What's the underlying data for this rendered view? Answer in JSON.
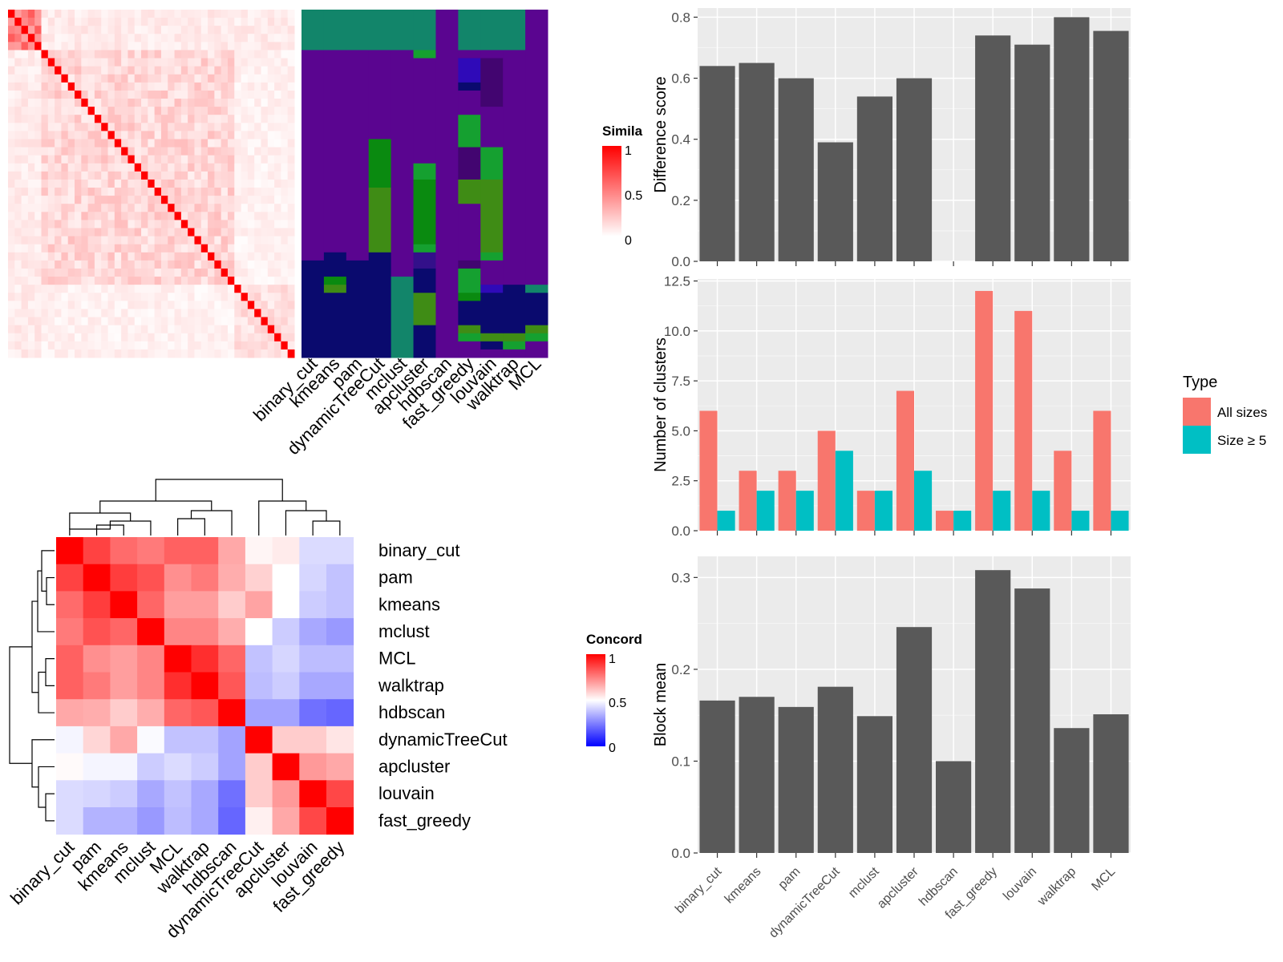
{
  "chart_data": [
    {
      "type": "heatmap",
      "panel": "similarity",
      "legend": {
        "title": "Simila",
        "ticks": [
          "1",
          "0.5",
          "0"
        ],
        "colors": {
          "low": "#ffffff",
          "high": "#ff0000"
        }
      },
      "n_terms": 43,
      "membership": {
        "methods": [
          "binary_cut",
          "kmeans",
          "pam",
          "dynamicTreeCut",
          "mclust",
          "apcluster",
          "hdbscan",
          "fast_greedy",
          "louvain",
          "walktrap",
          "MCL"
        ],
        "colors": {
          "teal": "#12856a",
          "purple": "#5a0590",
          "navy": "#0a0a6e",
          "green": "#0a8a10",
          "olive": "#3f8c15",
          "lightgreen": "#15a030",
          "blue": "#2f0ab8",
          "darkpurple": "#420570",
          "indigo": "#33108a"
        },
        "segments": [
          {
            "method": "binary_cut",
            "blocks": [
              [
                5,
                "teal"
              ],
              [
                26,
                "purple"
              ],
              [
                12,
                "navy"
              ]
            ]
          },
          {
            "method": "kmeans",
            "blocks": [
              [
                5,
                "teal"
              ],
              [
                25,
                "purple"
              ],
              [
                3,
                "navy"
              ],
              [
                1,
                "green"
              ],
              [
                1,
                "olive"
              ],
              [
                8,
                "navy"
              ]
            ]
          },
          {
            "method": "pam",
            "blocks": [
              [
                5,
                "teal"
              ],
              [
                26,
                "purple"
              ],
              [
                12,
                "navy"
              ]
            ]
          },
          {
            "method": "dynamicTreeCut",
            "blocks": [
              [
                5,
                "teal"
              ],
              [
                11,
                "purple"
              ],
              [
                6,
                "green"
              ],
              [
                8,
                "olive"
              ],
              [
                13,
                "navy"
              ]
            ]
          },
          {
            "method": "mclust",
            "blocks": [
              [
                5,
                "teal"
              ],
              [
                28,
                "purple"
              ],
              [
                10,
                "teal"
              ]
            ]
          },
          {
            "method": "apcluster",
            "blocks": [
              [
                5,
                "teal"
              ],
              [
                1,
                "lightgreen"
              ],
              [
                13,
                "purple"
              ],
              [
                2,
                "lightgreen"
              ],
              [
                8,
                "green"
              ],
              [
                1,
                "lightgreen"
              ],
              [
                2,
                "indigo"
              ],
              [
                3,
                "navy"
              ],
              [
                4,
                "olive"
              ],
              [
                4,
                "navy"
              ]
            ]
          },
          {
            "method": "hdbscan",
            "blocks": [
              [
                43,
                "purple"
              ]
            ]
          },
          {
            "method": "fast_greedy",
            "blocks": [
              [
                5,
                "teal"
              ],
              [
                1,
                "purple"
              ],
              [
                3,
                "blue"
              ],
              [
                1,
                "navy"
              ],
              [
                3,
                "purple"
              ],
              [
                4,
                "lightgreen"
              ],
              [
                4,
                "darkpurple"
              ],
              [
                3,
                "olive"
              ],
              [
                7,
                "purple"
              ],
              [
                1,
                "darkpurple"
              ],
              [
                3,
                "lightgreen"
              ],
              [
                1,
                "green"
              ],
              [
                3,
                "navy"
              ],
              [
                1,
                "olive"
              ],
              [
                1,
                "lightgreen"
              ],
              [
                2,
                "purple"
              ]
            ]
          },
          {
            "method": "louvain",
            "blocks": [
              [
                5,
                "teal"
              ],
              [
                1,
                "purple"
              ],
              [
                6,
                "darkpurple"
              ],
              [
                5,
                "purple"
              ],
              [
                4,
                "lightgreen"
              ],
              [
                1,
                "olive"
              ],
              [
                8,
                "olive"
              ],
              [
                1,
                "lightgreen"
              ],
              [
                3,
                "purple"
              ],
              [
                1,
                "blue"
              ],
              [
                5,
                "navy"
              ],
              [
                1,
                "olive"
              ],
              [
                1,
                "navy"
              ],
              [
                1,
                "purple"
              ]
            ]
          },
          {
            "method": "walktrap",
            "blocks": [
              [
                5,
                "teal"
              ],
              [
                29,
                "purple"
              ],
              [
                6,
                "navy"
              ],
              [
                1,
                "olive"
              ],
              [
                1,
                "lightgreen"
              ],
              [
                1,
                "purple"
              ]
            ]
          },
          {
            "method": "MCL",
            "blocks": [
              [
                34,
                "purple"
              ],
              [
                1,
                "teal"
              ],
              [
                4,
                "navy"
              ],
              [
                1,
                "olive"
              ],
              [
                1,
                "lightgreen"
              ],
              [
                2,
                "purple"
              ]
            ]
          }
        ]
      }
    },
    {
      "type": "heatmap",
      "panel": "concordance",
      "legend": {
        "title": "Concord",
        "ticks": [
          "1",
          "0.5",
          "0"
        ],
        "colors": {
          "low": "#0000ff",
          "mid": "#ffffff",
          "high": "#ff0000"
        }
      },
      "columns": [
        "binary_cut",
        "pam",
        "kmeans",
        "mclust",
        "MCL",
        "walktrap",
        "hdbscan",
        "dynamicTreeCut",
        "apcluster",
        "louvain",
        "fast_greedy"
      ],
      "rows": [
        "binary_cut",
        "pam",
        "kmeans",
        "mclust",
        "MCL",
        "walktrap",
        "hdbscan",
        "dynamicTreeCut",
        "apcluster",
        "louvain",
        "fast_greedy"
      ],
      "values": [
        [
          1.0,
          0.87,
          0.79,
          0.76,
          0.81,
          0.81,
          0.67,
          0.52,
          0.54,
          0.43,
          0.43
        ],
        [
          0.87,
          1.0,
          0.88,
          0.84,
          0.72,
          0.76,
          0.66,
          0.59,
          0.5,
          0.42,
          0.38
        ],
        [
          0.79,
          0.88,
          1.0,
          0.8,
          0.69,
          0.69,
          0.6,
          0.68,
          0.5,
          0.4,
          0.38
        ],
        [
          0.76,
          0.84,
          0.8,
          1.0,
          0.74,
          0.74,
          0.66,
          0.5,
          0.4,
          0.33,
          0.3
        ],
        [
          0.81,
          0.72,
          0.69,
          0.74,
          1.0,
          0.91,
          0.8,
          0.38,
          0.42,
          0.37,
          0.37
        ],
        [
          0.81,
          0.76,
          0.69,
          0.74,
          0.91,
          1.0,
          0.83,
          0.37,
          0.4,
          0.33,
          0.33
        ],
        [
          0.67,
          0.66,
          0.6,
          0.66,
          0.8,
          0.83,
          1.0,
          0.32,
          0.32,
          0.22,
          0.2
        ],
        [
          0.48,
          0.58,
          0.67,
          0.49,
          0.38,
          0.38,
          0.32,
          1.0,
          0.6,
          0.6,
          0.55
        ],
        [
          0.51,
          0.48,
          0.48,
          0.4,
          0.43,
          0.4,
          0.32,
          0.6,
          1.0,
          0.7,
          0.67
        ],
        [
          0.43,
          0.42,
          0.4,
          0.33,
          0.38,
          0.33,
          0.22,
          0.6,
          0.7,
          1.0,
          0.86
        ],
        [
          0.43,
          0.35,
          0.35,
          0.3,
          0.37,
          0.33,
          0.2,
          0.53,
          0.67,
          0.86,
          1.0
        ]
      ]
    },
    {
      "type": "bar",
      "panel": "difference",
      "categories": [
        "binary_cut",
        "kmeans",
        "pam",
        "dynamicTreeCut",
        "mclust",
        "apcluster",
        "hdbscan",
        "fast_greedy",
        "louvain",
        "walktrap",
        "MCL"
      ],
      "values": [
        0.64,
        0.65,
        0.6,
        0.39,
        0.54,
        0.6,
        null,
        0.74,
        0.71,
        0.8,
        0.755
      ],
      "ylabel": "Difference score",
      "ylim": [
        0,
        0.83
      ],
      "yticks": [
        "0.0",
        "0.2",
        "0.4",
        "0.6",
        "0.8"
      ]
    },
    {
      "type": "bar",
      "panel": "clusters",
      "categories": [
        "binary_cut",
        "kmeans",
        "pam",
        "dynamicTreeCut",
        "mclust",
        "apcluster",
        "hdbscan",
        "fast_greedy",
        "louvain",
        "walktrap",
        "MCL"
      ],
      "series": [
        {
          "name": "All sizes",
          "color": "#f8766d",
          "values": [
            6,
            3,
            3,
            5,
            2,
            7,
            1,
            12,
            11,
            4,
            6
          ]
        },
        {
          "name": "Size ≥ 5",
          "color": "#00bfc4",
          "values": [
            1,
            2,
            2,
            4,
            2,
            3,
            1,
            2,
            2,
            1,
            1
          ]
        }
      ],
      "ylabel": "Number of clusters",
      "ylim": [
        0,
        12.6
      ],
      "yticks": [
        "0.0",
        "2.5",
        "5.0",
        "7.5",
        "10.0",
        "12.5"
      ],
      "legend": {
        "title": "Type",
        "position": "right"
      }
    },
    {
      "type": "bar",
      "panel": "block",
      "categories": [
        "binary_cut",
        "kmeans",
        "pam",
        "dynamicTreeCut",
        "mclust",
        "apcluster",
        "hdbscan",
        "fast_greedy",
        "louvain",
        "walktrap",
        "MCL"
      ],
      "values": [
        0.166,
        0.17,
        0.159,
        0.181,
        0.149,
        0.246,
        0.1,
        0.308,
        0.288,
        0.136,
        0.151
      ],
      "ylabel": "Block mean",
      "ylim": [
        0,
        0.323
      ],
      "yticks": [
        "0.0",
        "0.1",
        "0.2",
        "0.3"
      ]
    }
  ]
}
